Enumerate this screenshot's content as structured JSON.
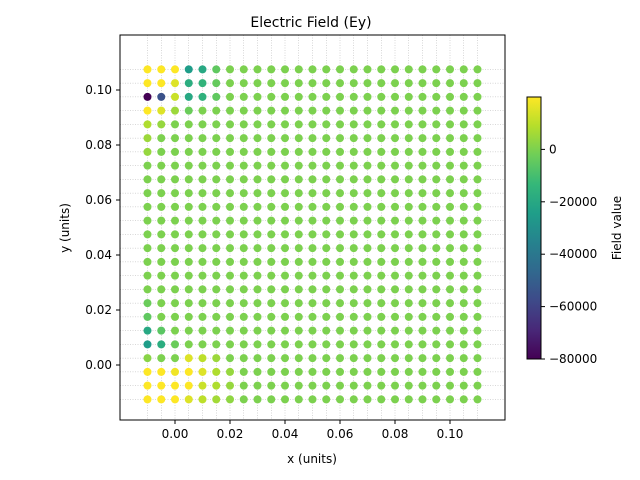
{
  "chart_data": {
    "type": "scatter",
    "title": "Electric Field (Ey)",
    "xlabel": "x (units)",
    "ylabel": "y (units)",
    "xlim": [
      -0.02,
      0.12
    ],
    "ylim": [
      -0.02,
      0.12
    ],
    "xticks": [
      0.0,
      0.02,
      0.04,
      0.06,
      0.08,
      0.1
    ],
    "xtick_labels": [
      "0.00",
      "0.02",
      "0.04",
      "0.06",
      "0.08",
      "0.10"
    ],
    "yticks": [
      0.0,
      0.02,
      0.04,
      0.06,
      0.08,
      0.1
    ],
    "ytick_labels": [
      "0.00",
      "0.02",
      "0.04",
      "0.06",
      "0.08",
      "0.10"
    ],
    "grid": true,
    "grid_x": [
      -0.01,
      -0.005,
      0.0,
      0.005,
      0.01,
      0.015,
      0.02,
      0.025,
      0.03,
      0.035,
      0.04,
      0.045,
      0.05,
      0.055,
      0.06,
      0.065,
      0.07,
      0.075,
      0.08,
      0.085,
      0.09,
      0.095,
      0.1,
      0.105,
      0.11
    ],
    "grid_y": [
      -0.0125,
      -0.0075,
      -0.0025,
      0.0025,
      0.0075,
      0.0125,
      0.0175,
      0.0225,
      0.0275,
      0.0325,
      0.0375,
      0.0425,
      0.0475,
      0.0525,
      0.0575,
      0.0625,
      0.0675,
      0.0725,
      0.0775,
      0.0825,
      0.0875,
      0.0925,
      0.0975,
      0.1025,
      0.1075
    ],
    "default_value": 0,
    "points": [
      {
        "x": -0.01,
        "y": 0.1075,
        "value": 20000
      },
      {
        "x": -0.005,
        "y": 0.1075,
        "value": 20000
      },
      {
        "x": 0.0,
        "y": 0.1075,
        "value": 20000
      },
      {
        "x": 0.005,
        "y": 0.1075,
        "value": -25000
      },
      {
        "x": 0.01,
        "y": 0.1075,
        "value": -20000
      },
      {
        "x": 0.015,
        "y": 0.1075,
        "value": -5000
      },
      {
        "x": -0.01,
        "y": 0.1025,
        "value": 20000
      },
      {
        "x": -0.005,
        "y": 0.1025,
        "value": 20000
      },
      {
        "x": 0.0,
        "y": 0.1025,
        "value": 15000
      },
      {
        "x": 0.005,
        "y": 0.1025,
        "value": -18000
      },
      {
        "x": 0.01,
        "y": 0.1025,
        "value": -15000
      },
      {
        "x": 0.015,
        "y": 0.1025,
        "value": -4000
      },
      {
        "x": -0.01,
        "y": 0.0975,
        "value": -80000
      },
      {
        "x": -0.005,
        "y": 0.0975,
        "value": -55000
      },
      {
        "x": 0.0,
        "y": 0.0975,
        "value": 12000
      },
      {
        "x": 0.005,
        "y": 0.0975,
        "value": -20000
      },
      {
        "x": 0.01,
        "y": 0.0975,
        "value": -16000
      },
      {
        "x": 0.015,
        "y": 0.0975,
        "value": -5000
      },
      {
        "x": -0.01,
        "y": 0.0925,
        "value": 20000
      },
      {
        "x": -0.005,
        "y": 0.0925,
        "value": 15000
      },
      {
        "x": 0.0,
        "y": 0.0925,
        "value": 5000
      },
      {
        "x": 0.005,
        "y": 0.0925,
        "value": -3000
      },
      {
        "x": -0.01,
        "y": 0.0875,
        "value": 8000
      },
      {
        "x": -0.005,
        "y": 0.0875,
        "value": 4000
      },
      {
        "x": -0.01,
        "y": 0.0825,
        "value": 5000
      },
      {
        "x": -0.01,
        "y": 0.0775,
        "value": 4000
      },
      {
        "x": -0.01,
        "y": 0.0225,
        "value": -3000
      },
      {
        "x": -0.01,
        "y": 0.0175,
        "value": -5000
      },
      {
        "x": -0.01,
        "y": 0.0125,
        "value": -20000
      },
      {
        "x": -0.005,
        "y": 0.0125,
        "value": -6000
      },
      {
        "x": -0.01,
        "y": 0.0075,
        "value": -25000
      },
      {
        "x": -0.005,
        "y": 0.0075,
        "value": -18000
      },
      {
        "x": 0.0,
        "y": 0.0075,
        "value": -3000
      },
      {
        "x": -0.01,
        "y": 0.0025,
        "value": 2000
      },
      {
        "x": 0.005,
        "y": 0.0025,
        "value": 15000
      },
      {
        "x": 0.01,
        "y": 0.0025,
        "value": 10000
      },
      {
        "x": 0.015,
        "y": 0.0025,
        "value": 5000
      },
      {
        "x": -0.01,
        "y": -0.0025,
        "value": 20000
      },
      {
        "x": -0.005,
        "y": -0.0025,
        "value": 20000
      },
      {
        "x": 0.0,
        "y": -0.0025,
        "value": 18000
      },
      {
        "x": 0.005,
        "y": -0.0025,
        "value": 20000
      },
      {
        "x": 0.01,
        "y": -0.0025,
        "value": 15000
      },
      {
        "x": 0.015,
        "y": -0.0025,
        "value": 8000
      },
      {
        "x": 0.02,
        "y": -0.0025,
        "value": 4000
      },
      {
        "x": -0.01,
        "y": -0.0075,
        "value": 20000
      },
      {
        "x": -0.005,
        "y": -0.0075,
        "value": 20000
      },
      {
        "x": 0.0,
        "y": -0.0075,
        "value": 20000
      },
      {
        "x": 0.005,
        "y": -0.0075,
        "value": 20000
      },
      {
        "x": 0.01,
        "y": -0.0075,
        "value": 12000
      },
      {
        "x": 0.015,
        "y": -0.0075,
        "value": 8000
      },
      {
        "x": 0.02,
        "y": -0.0075,
        "value": 4000
      },
      {
        "x": -0.01,
        "y": -0.0125,
        "value": 20000
      },
      {
        "x": -0.005,
        "y": -0.0125,
        "value": 20000
      },
      {
        "x": 0.0,
        "y": -0.0125,
        "value": 20000
      },
      {
        "x": 0.005,
        "y": -0.0125,
        "value": 15000
      },
      {
        "x": 0.01,
        "y": -0.0125,
        "value": 10000
      },
      {
        "x": 0.015,
        "y": -0.0125,
        "value": 6000
      },
      {
        "x": 0.02,
        "y": -0.0125,
        "value": 3000
      }
    ],
    "colorbar": {
      "label": "Field value",
      "min": -80000,
      "max": 20000,
      "ticks": [
        -80000,
        -60000,
        -40000,
        -20000,
        0
      ],
      "tick_labels": [
        "−80000",
        "−60000",
        "−40000",
        "−20000",
        "0"
      ],
      "colormap": "viridis",
      "colors": [
        "#440154",
        "#482878",
        "#3e4a89",
        "#31688e",
        "#26828e",
        "#1f9e89",
        "#35b779",
        "#6ece58",
        "#b5de2b",
        "#fde725"
      ]
    }
  }
}
